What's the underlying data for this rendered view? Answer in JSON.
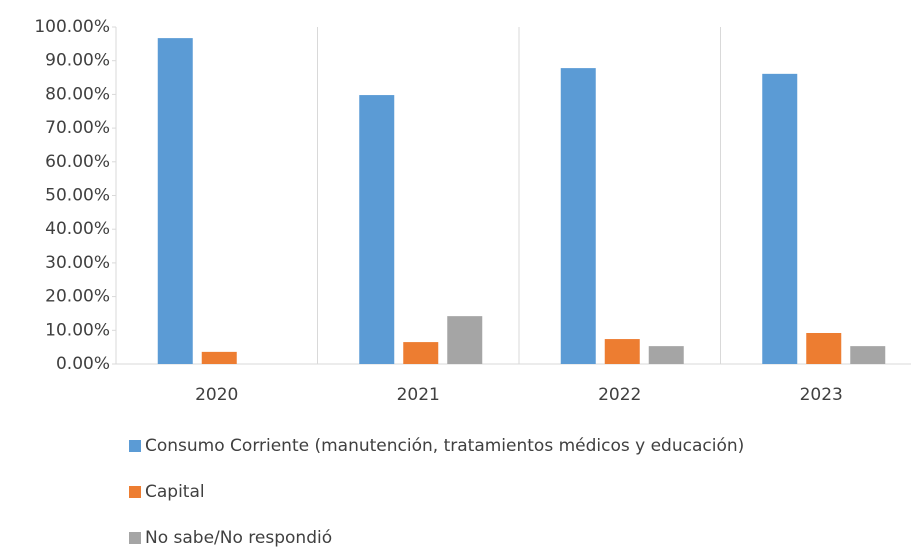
{
  "chart_data": {
    "type": "bar",
    "categories": [
      "2020",
      "2021",
      "2022",
      "2023"
    ],
    "series": [
      {
        "name": "Consumo Corriente (manutención, tratamientos médicos y educación)",
        "color": "#5b9bd5",
        "values": [
          96.7,
          79.8,
          87.8,
          86.1
        ]
      },
      {
        "name": "Capital",
        "color": "#ed7d31",
        "values": [
          3.6,
          6.5,
          7.4,
          9.2
        ]
      },
      {
        "name": "No sabe/No respondió",
        "color": "#a5a5a5",
        "values": [
          0,
          14.2,
          5.3,
          5.3
        ]
      }
    ],
    "ylim": [
      0,
      100
    ],
    "yticks": [
      {
        "value": 0,
        "label": "0.00%"
      },
      {
        "value": 10,
        "label": "10.00%"
      },
      {
        "value": 20,
        "label": "20.00%"
      },
      {
        "value": 30,
        "label": "30.00%"
      },
      {
        "value": 40,
        "label": "40.00%"
      },
      {
        "value": 50,
        "label": "50.00%"
      },
      {
        "value": 60,
        "label": "60.00%"
      },
      {
        "value": 70,
        "label": "70.00%"
      },
      {
        "value": 80,
        "label": "80.00%"
      },
      {
        "value": 90,
        "label": "90.00%"
      },
      {
        "value": 100,
        "label": "100.00%"
      }
    ],
    "legend": "bottom"
  }
}
